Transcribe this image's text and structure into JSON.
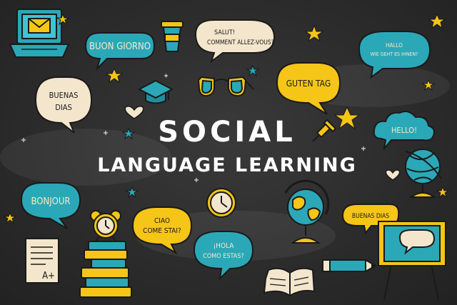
{
  "title": {
    "line1": "SOCIAL",
    "line2": "LANGUAGE LEARNING"
  },
  "greetings": {
    "buon_giorno": "BUON GIORNO",
    "salut_1": "SALUT!",
    "salut_2": "COMMENT ALLEZ-VOUS?",
    "hallo_1": "HALLO",
    "hallo_2": "WIE GEHT ES IHNEN?",
    "buenas_dias_1": "BUENAS",
    "buenas_dias_2": "DIAS",
    "guten_tag": "GUTEN TAG",
    "hello": "HELLO!",
    "bonjour": "BONJOUR",
    "ciao_1": "CIAO",
    "ciao_2": "COME STAI?",
    "hola_1": "¡HOLA",
    "hola_2": "COMO ESTAS?",
    "buenas_dias_right": "BUENAS DIAS"
  },
  "paper_grade": "A+",
  "colors": {
    "board": "#2c2c2c",
    "yellow": "#f5c518",
    "teal": "#2aa8b8",
    "cream": "#f3e6cc",
    "chalk": "#ffffff",
    "outline": "#1a1a1a"
  },
  "icons": [
    "laptop-email-icon",
    "coffee-cup-icon",
    "graduation-cap-icon",
    "glasses-icon",
    "heart-icon",
    "push-pin-icon",
    "globe-icon",
    "wall-clock-icon",
    "alarm-clock-icon",
    "book-stack-icon",
    "graded-paper-icon",
    "open-book-icon",
    "pencil-icon",
    "easel-board-icon",
    "star-icon",
    "cloud-icon"
  ]
}
